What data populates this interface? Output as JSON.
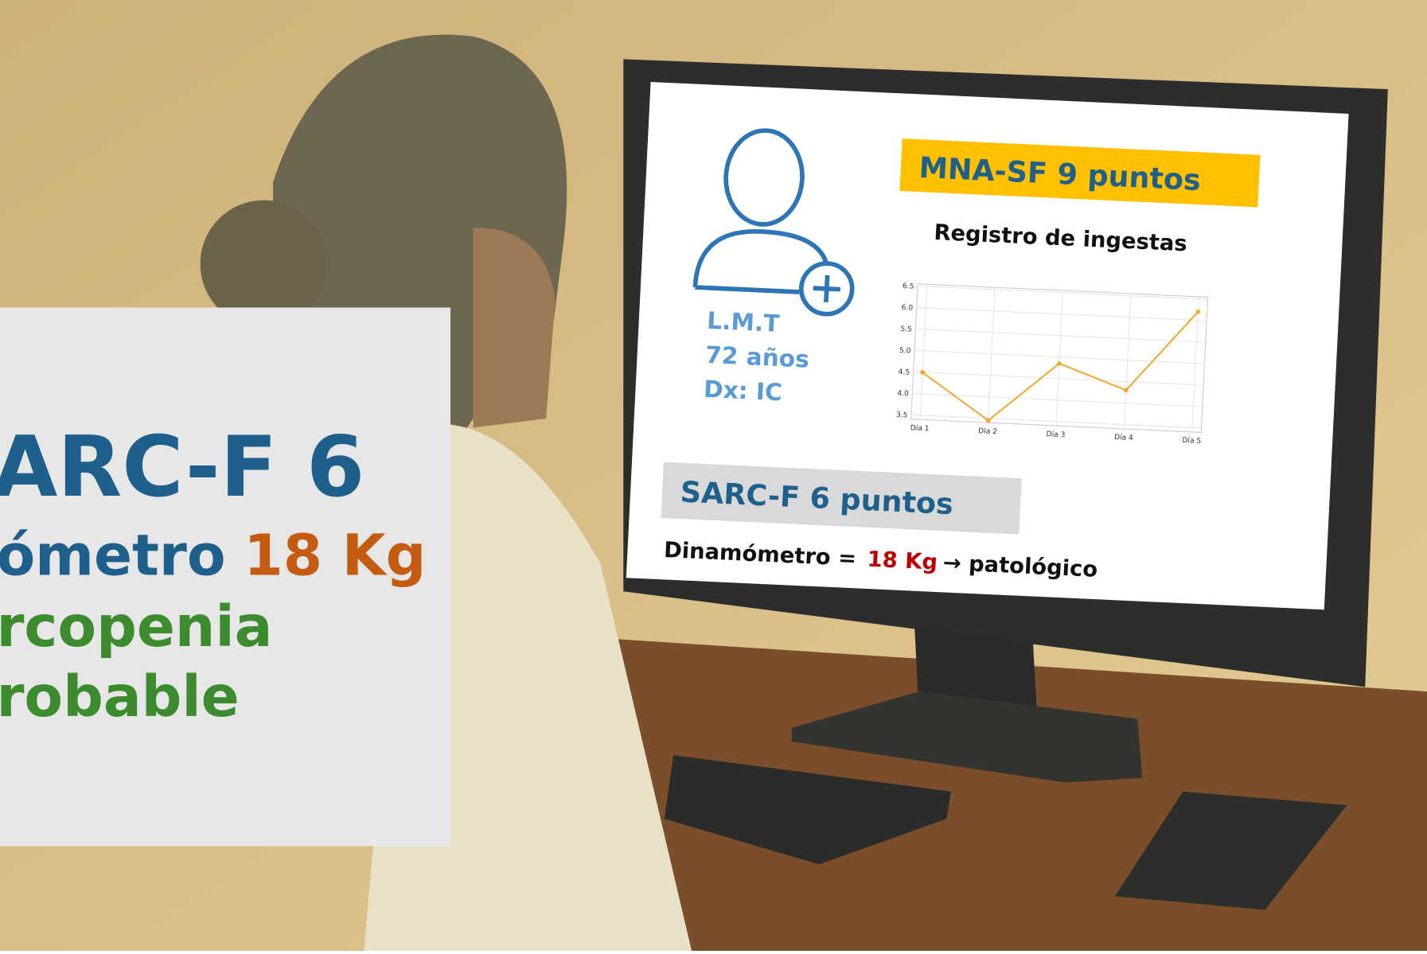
{
  "screen": {
    "patient": [
      "L.M.T",
      "72 años",
      "Dx: IC"
    ],
    "mna": "MNA-SF 9 puntos",
    "chart_title": "Registro de ingestas",
    "chart_data": {
      "type": "line",
      "categories": [
        "Día 1",
        "Día 2",
        "Día 3",
        "Día 4",
        "Día 5"
      ],
      "values": [
        4.5,
        3.45,
        4.85,
        4.3,
        6.2
      ],
      "color": "#f0a830",
      "ylim": [
        3.4,
        6.55
      ],
      "yticks": [
        3.5,
        {
          "value": 4,
          "label": "4.0"
        },
        4.5,
        {
          "value": 5,
          "label": "5.0"
        },
        5.5,
        {
          "value": 6,
          "label": "6.0"
        },
        6.5
      ],
      "grid": true
    },
    "sarc": "SARC-F 6 puntos",
    "dyn_label": "Dinamómetro =",
    "dyn_value": "18 Kg",
    "dyn_result": "→ patológico"
  },
  "overlay": {
    "line1": "ARC-F 6",
    "line2a": "ómetro",
    "line2b": "18 Kg",
    "line3": "rcopenia",
    "line4": "robable"
  }
}
